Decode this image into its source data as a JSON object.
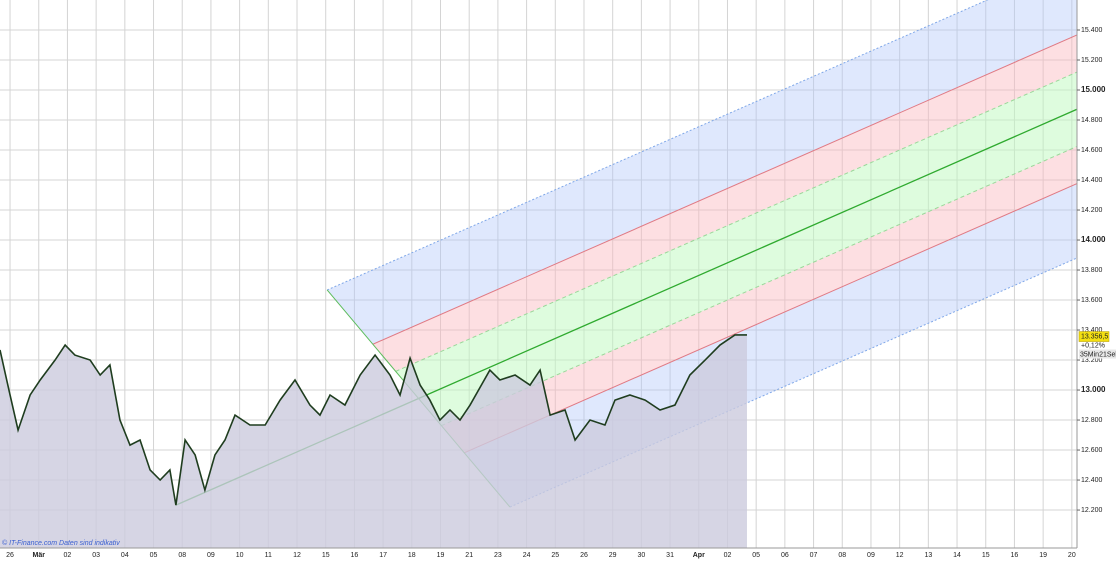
{
  "chart_data": {
    "type": "area",
    "categories": [
      "26",
      "Mär",
      "02",
      "03",
      "04",
      "05",
      "08",
      "09",
      "10",
      "11",
      "12",
      "15",
      "16",
      "17",
      "18",
      "19",
      "21",
      "23",
      "24",
      "25",
      "26",
      "29",
      "30",
      "31",
      "Apr",
      "02",
      "05",
      "06",
      "07",
      "08",
      "09",
      "12",
      "13",
      "14",
      "15",
      "16",
      "19",
      "20"
    ],
    "xlim": [
      -0.35,
      37.18
    ],
    "ylim": [
      11947,
      15600
    ],
    "yticks": [
      {
        "value": 12200,
        "label": "12.200"
      },
      {
        "value": 12400,
        "label": "12.400"
      },
      {
        "value": 12600,
        "label": "12.600"
      },
      {
        "value": 12800,
        "label": "12.800"
      },
      {
        "value": 13000,
        "label": "13.000"
      },
      {
        "value": 13200,
        "label": "13.200"
      },
      {
        "value": 13400,
        "label": "13.400"
      },
      {
        "value": 13600,
        "label": "13.600"
      },
      {
        "value": 13800,
        "label": "13.800"
      },
      {
        "value": 14000,
        "label": "14.000"
      },
      {
        "value": 14200,
        "label": "14.200"
      },
      {
        "value": 14400,
        "label": "14.400"
      },
      {
        "value": 14600,
        "label": "14.600"
      },
      {
        "value": 14800,
        "label": "14.800"
      },
      {
        "value": 15000,
        "label": "15.000"
      },
      {
        "value": 15200,
        "label": "15.200"
      },
      {
        "value": 15400,
        "label": "15.400"
      }
    ],
    "grid": true,
    "series": [
      {
        "color": "#1f3d1f",
        "fill": "#cccbdd",
        "x": [
          -0.35,
          0,
          0.28,
          0.7,
          1.05,
          1.57,
          1.92,
          2.26,
          2.79,
          3.14,
          3.48,
          3.83,
          4.18,
          4.53,
          4.88,
          5.23,
          5.57,
          5.78,
          6.1,
          6.45,
          6.79,
          7.14,
          7.49,
          7.84,
          8.36,
          8.89,
          9.41,
          9.93,
          10.45,
          10.8,
          11.15,
          11.67,
          12.2,
          12.72,
          13.24,
          13.59,
          13.94,
          14.29,
          14.63,
          14.98,
          15.33,
          15.68,
          16.03,
          16.72,
          17.07,
          17.6,
          18.12,
          18.47,
          18.82,
          19.34,
          19.69,
          20.21,
          20.73,
          21.08,
          21.6,
          22.13,
          22.65,
          23.17,
          23.69,
          24.22,
          24.74,
          25.26,
          25.68
        ],
        "values": [
          13267,
          12967,
          12733,
          12967,
          13067,
          13200,
          13300,
          13233,
          13200,
          13100,
          13167,
          12800,
          12633,
          12667,
          12467,
          12400,
          12467,
          12233,
          12667,
          12567,
          12333,
          12567,
          12667,
          12833,
          12767,
          12767,
          12933,
          13067,
          12900,
          12833,
          12967,
          12900,
          13100,
          13233,
          13100,
          12967,
          13213,
          13033,
          12933,
          12800,
          12867,
          12800,
          12900,
          13133,
          13067,
          13100,
          13033,
          13133,
          12833,
          12867,
          12667,
          12800,
          12767,
          12933,
          12967,
          12933,
          12867,
          12900,
          13100,
          13200,
          13300,
          13367,
          13367
        ]
      }
    ],
    "pitchfork": [
      {
        "x": 5.78,
        "y": 12233
      },
      {
        "x": 11.05,
        "y": 13667
      },
      {
        "x": 17.42,
        "y": 12220
      }
    ],
    "last_price": {
      "value": 13356.5,
      "label": "13.356,5"
    },
    "change_label": "+0,12%",
    "countdown_label": "35Min21Sek",
    "watermark": "© IT-Finance.com  Daten sind indikativ"
  }
}
